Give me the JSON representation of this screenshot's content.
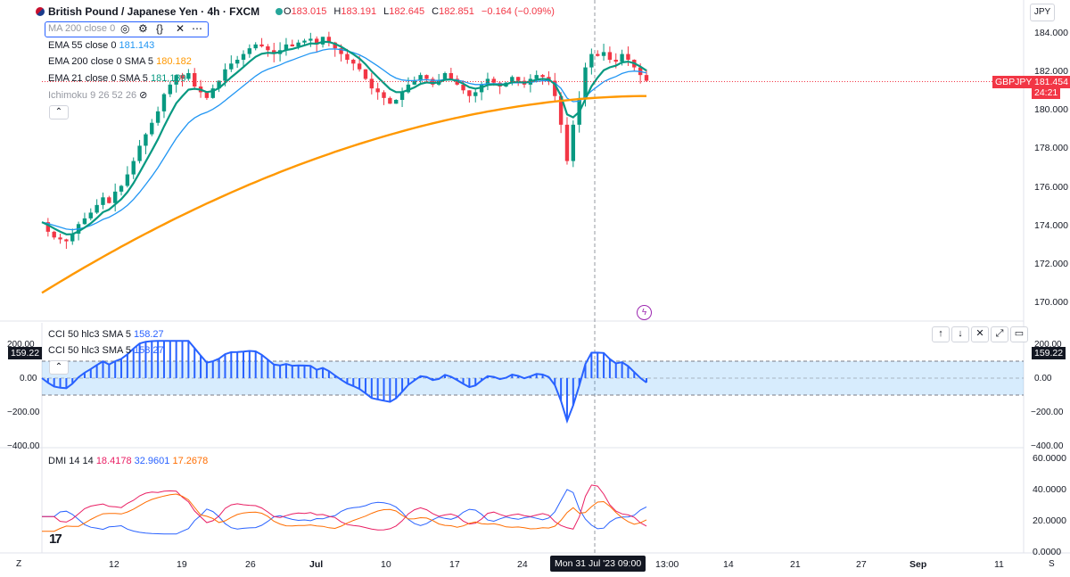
{
  "header": {
    "symbol_title": "British Pound / Japanese Yen · 4h · FXCM",
    "ohlc": [
      {
        "label": "O",
        "value": "183.015"
      },
      {
        "label": "H",
        "value": "183.191"
      },
      {
        "label": "L",
        "value": "182.645"
      },
      {
        "label": "C",
        "value": "182.851"
      },
      {
        "label": "",
        "value": "−0.164 (−0.09%)"
      }
    ],
    "currency": "JPY"
  },
  "indicators": {
    "ma_box": "MA 200 close 0",
    "ema55": {
      "label": "EMA 55 close 0",
      "value": "181.143",
      "color": "#2196f3"
    },
    "ema200": {
      "label": "EMA 200 close 0 SMA 5",
      "value": "180.182",
      "color": "#ff9800"
    },
    "ema21": {
      "label": "EMA 21 close 0 SMA 5",
      "value": "181.139",
      "color": "#089981"
    },
    "ichimoku": {
      "label": "Ichimoku 9 26 52 26"
    }
  },
  "price_tag": {
    "symbol": "GBPJPY",
    "price": "181.454",
    "countdown": "24:21"
  },
  "cci": {
    "legend1": {
      "label": "CCI 50 hlc3 SMA 5",
      "value": "158.27"
    },
    "legend2": {
      "label": "CCI 50 hlc3 SMA 5",
      "value": "158.27"
    },
    "tag_left": "159.22",
    "tag_right": "159.22"
  },
  "dmi": {
    "label": "DMI 14 14",
    "plus": {
      "value": "18.4178",
      "color": "#e91e63"
    },
    "minus": {
      "value": "32.9601",
      "color": "#2962ff"
    },
    "adx": {
      "value": "17.2678",
      "color": "#ff6d00"
    }
  },
  "price_axis": [
    "184.000",
    "182.000",
    "180.000",
    "178.000",
    "176.000",
    "174.000",
    "172.000",
    "170.000"
  ],
  "cci_axis_left": [
    "200.00",
    "0.00",
    "−200.00",
    "−400.00"
  ],
  "cci_axis_right": [
    "200.00",
    "0.00",
    "−200.00",
    "−400.00"
  ],
  "dmi_axis": [
    "60.0000",
    "40.0000",
    "20.0000",
    "0.0000"
  ],
  "time_axis": [
    "12",
    "19",
    "26",
    "Jul",
    "10",
    "17",
    "24",
    "13:00",
    "14",
    "21",
    "27",
    "Sep",
    "11"
  ],
  "crosshair_time": "Mon 31 Jul '23  09:00",
  "corner": {
    "left": "Z",
    "right": "S"
  },
  "logo": "17",
  "chart_data": {
    "type": "candlestick",
    "series": [
      {
        "name": "GBPJPY",
        "closes": [
          174.1,
          173.6,
          173.3,
          173.2,
          173.1,
          173.5,
          174.0,
          174.3,
          174.6,
          175.0,
          175.4,
          175.1,
          175.7,
          176.0,
          176.6,
          177.3,
          178.1,
          178.7,
          179.3,
          179.9,
          180.8,
          181.3,
          181.8,
          181.6,
          181.9,
          181.2,
          180.9,
          180.6,
          181.1,
          181.5,
          182.1,
          182.4,
          182.6,
          182.9,
          183.2,
          183.4,
          183.3,
          183.1,
          182.9,
          183.1,
          183.4,
          183.3,
          183.5,
          183.6,
          183.7,
          183.4,
          183.8,
          183.5,
          183.2,
          182.9,
          182.6,
          182.4,
          182.1,
          181.6,
          181.1,
          180.9,
          180.6,
          180.3,
          180.5,
          180.9,
          181.3,
          181.5,
          181.8,
          181.6,
          181.3,
          181.5,
          181.9,
          181.6,
          181.3,
          181.0,
          180.7,
          180.9,
          181.3,
          181.6,
          181.4,
          181.2,
          181.4,
          181.7,
          181.5,
          181.3,
          181.6,
          181.8,
          181.7,
          181.5,
          180.7,
          179.2,
          177.3,
          179.2,
          180.6,
          182.2,
          182.9,
          182.8,
          183.0,
          182.6,
          182.5,
          182.9,
          182.6,
          182.2,
          181.8,
          181.5
        ]
      },
      {
        "name": "EMA 21",
        "color": "#089981"
      },
      {
        "name": "EMA 55",
        "color": "#2196f3"
      },
      {
        "name": "EMA 200",
        "color": "#ff9800"
      }
    ],
    "ylim": [
      169,
      185
    ]
  }
}
